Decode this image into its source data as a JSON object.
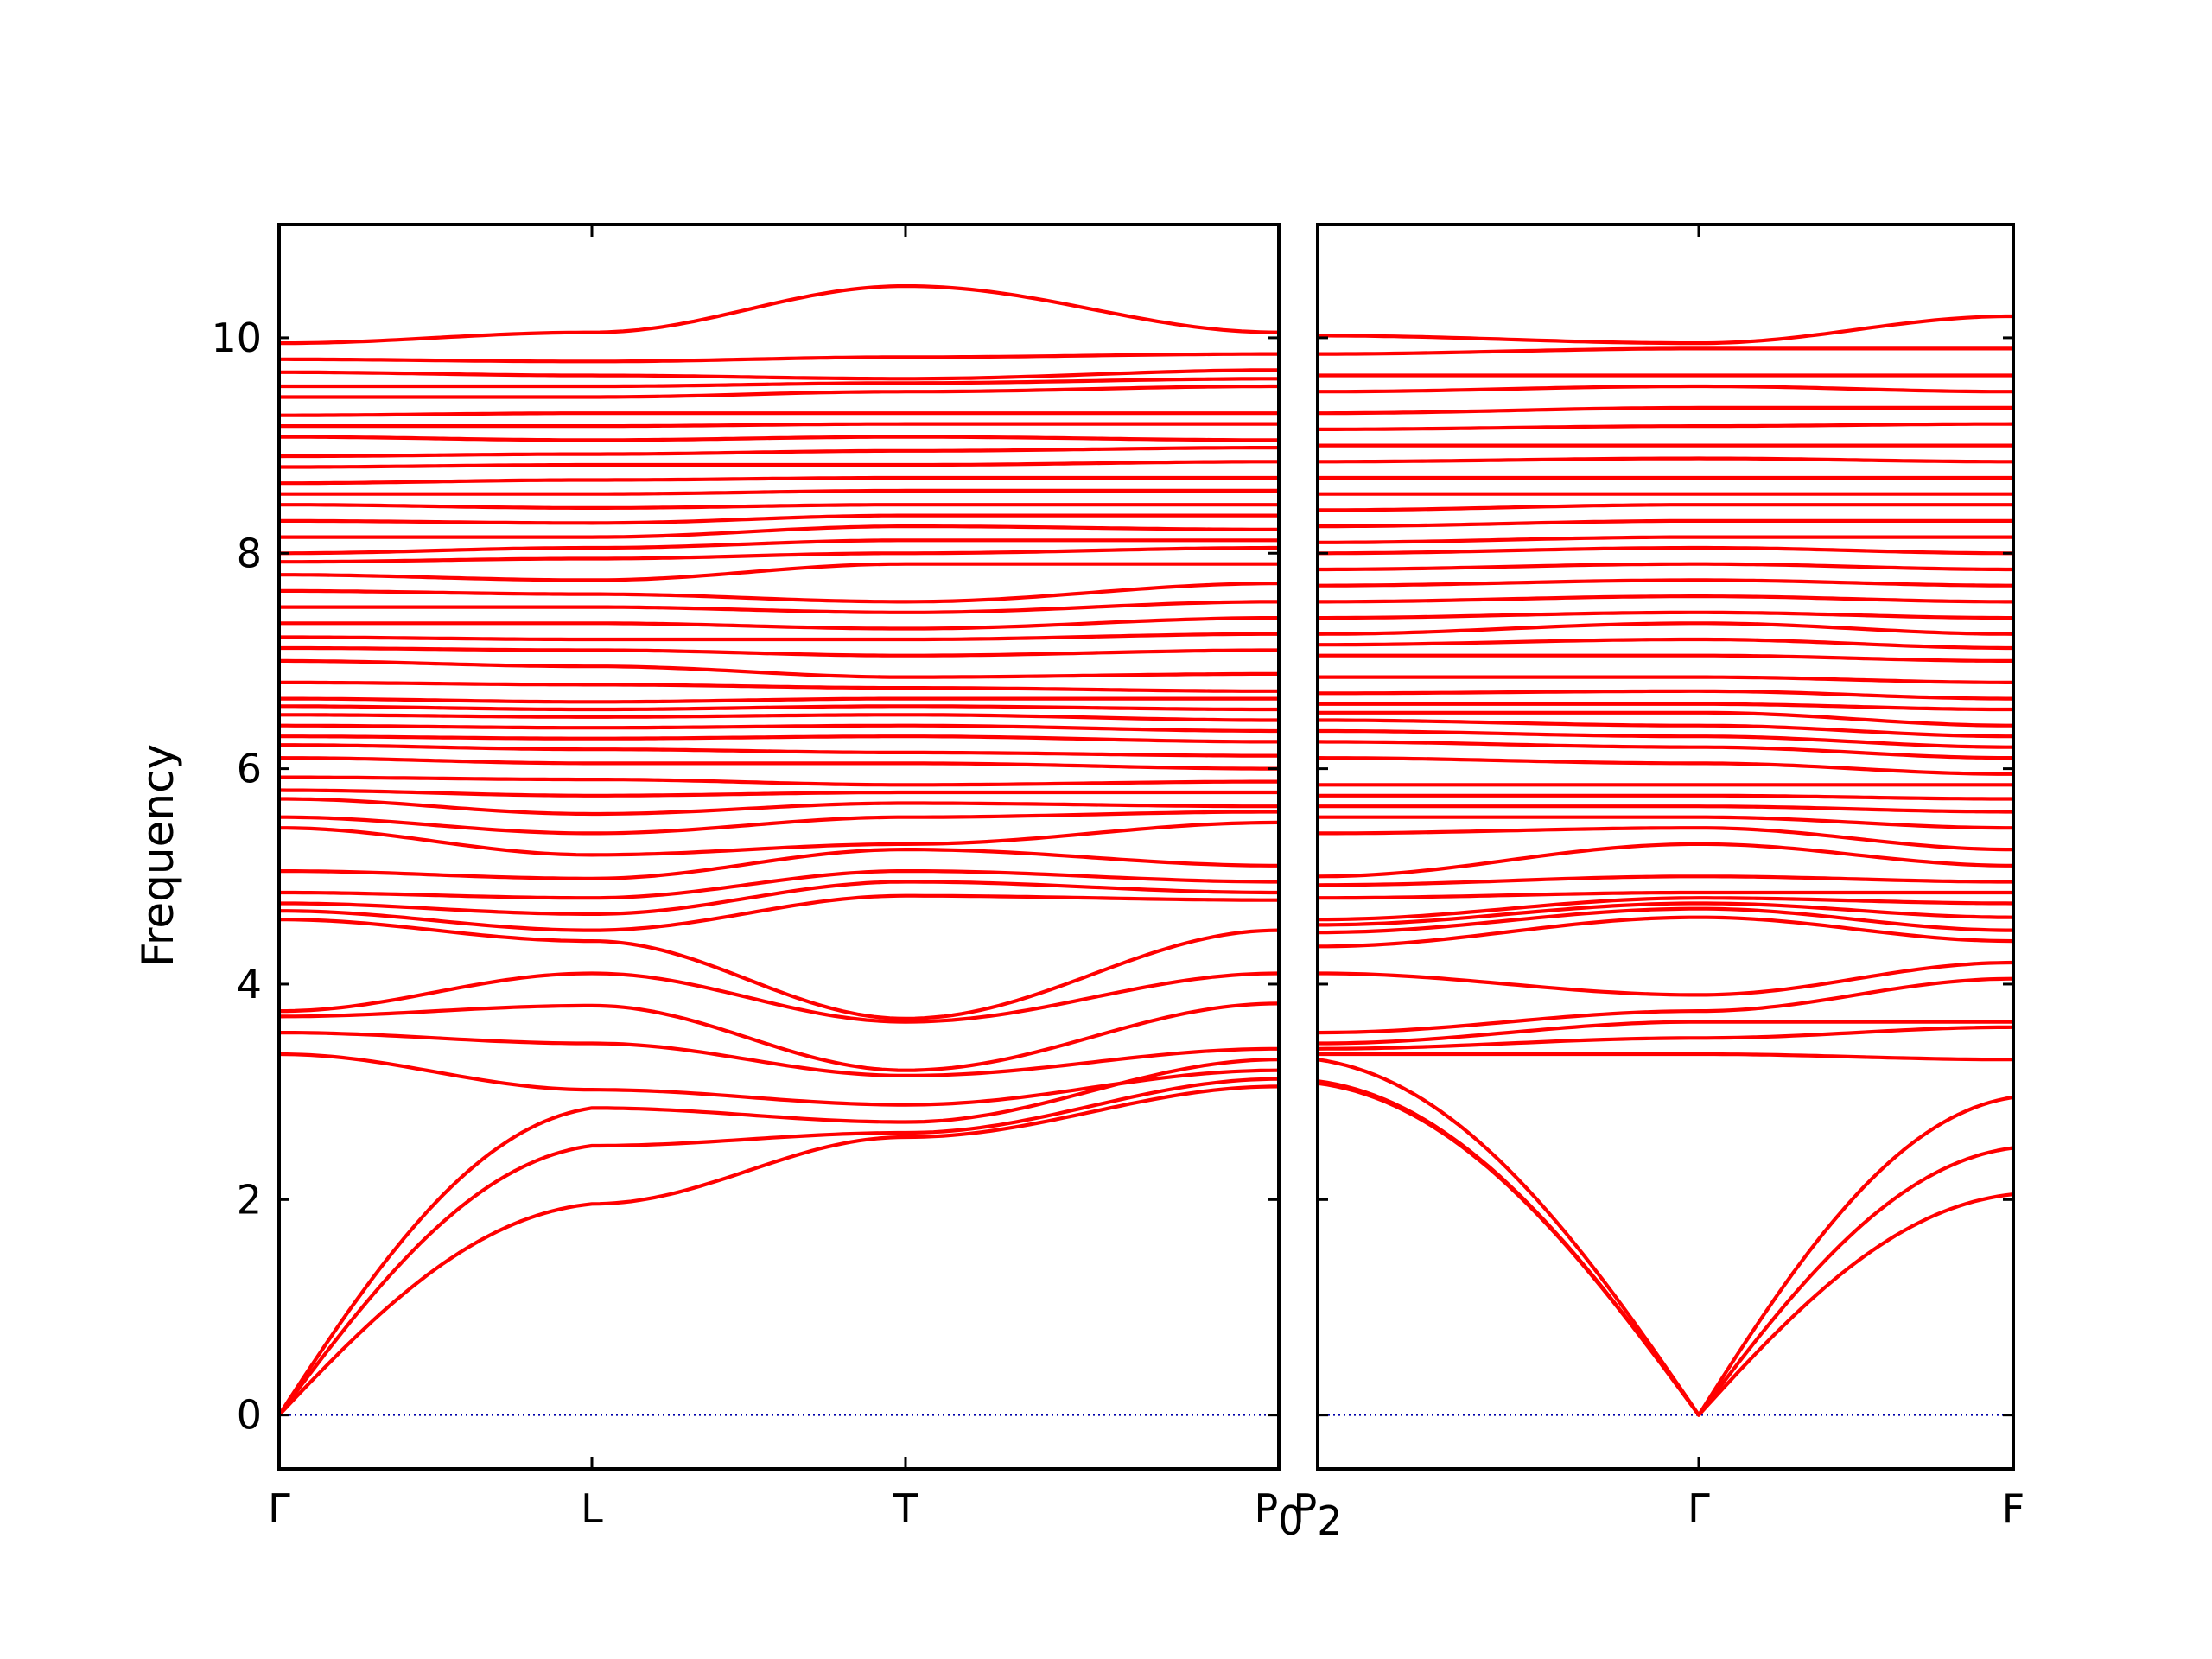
{
  "chart_data": {
    "type": "line",
    "ylabel": "Frequency",
    "ylim": [
      -0.5,
      11.05
    ],
    "yticks": [
      0,
      2,
      4,
      6,
      8,
      10
    ],
    "ytick_labels": [
      "0",
      "2",
      "4",
      "6",
      "8",
      "10"
    ],
    "line_color": "#ff0000",
    "zero_line_color": "#0000aa",
    "panels": [
      {
        "name": "left",
        "x_points": [
          "Γ",
          "L",
          "T",
          "P0"
        ],
        "xtick_labels": [
          "Γ",
          "L",
          "T",
          "P0"
        ],
        "low_branches": [
          [
            0,
            1.96,
            2.58,
            3.05
          ],
          [
            0,
            2.5,
            2.62,
            3.12
          ],
          [
            0,
            2.85,
            2.72,
            3.3
          ],
          [
            3.35,
            3.02,
            2.88,
            3.2
          ],
          [
            3.55,
            3.45,
            3.15,
            3.4
          ],
          [
            3.7,
            3.8,
            3.2,
            3.82
          ],
          [
            3.75,
            4.1,
            3.65,
            4.1
          ],
          [
            4.6,
            4.4,
            3.68,
            4.5
          ]
        ],
        "band_energies": [
          [
            4.68,
            4.5,
            4.82,
            4.78
          ],
          [
            4.75,
            4.65,
            4.95,
            4.85
          ],
          [
            4.85,
            4.8,
            5.05,
            4.95
          ],
          [
            5.05,
            4.98,
            5.25,
            5.1
          ],
          [
            5.45,
            5.2,
            5.3,
            5.5
          ],
          [
            5.55,
            5.4,
            5.55,
            5.6
          ],
          [
            5.72,
            5.58,
            5.68,
            5.65
          ],
          [
            5.8,
            5.75,
            5.78,
            5.78
          ],
          [
            5.92,
            5.9,
            5.85,
            5.88
          ],
          [
            6.1,
            6.05,
            6.05,
            6.0
          ],
          [
            6.22,
            6.18,
            6.15,
            6.12
          ],
          [
            6.3,
            6.28,
            6.3,
            6.25
          ],
          [
            6.4,
            6.38,
            6.4,
            6.35
          ],
          [
            6.5,
            6.48,
            6.5,
            6.45
          ],
          [
            6.58,
            6.55,
            6.58,
            6.55
          ],
          [
            6.65,
            6.62,
            6.65,
            6.65
          ],
          [
            6.8,
            6.78,
            6.75,
            6.72
          ],
          [
            7.0,
            6.95,
            6.85,
            6.88
          ],
          [
            7.12,
            7.1,
            7.05,
            7.1
          ],
          [
            7.22,
            7.2,
            7.2,
            7.25
          ],
          [
            7.35,
            7.35,
            7.3,
            7.4
          ],
          [
            7.5,
            7.5,
            7.45,
            7.55
          ],
          [
            7.65,
            7.62,
            7.55,
            7.72
          ],
          [
            7.8,
            7.75,
            7.9,
            7.9
          ],
          [
            7.92,
            7.95,
            8.0,
            8.05
          ],
          [
            8.0,
            8.05,
            8.12,
            8.12
          ],
          [
            8.15,
            8.15,
            8.25,
            8.22
          ],
          [
            8.3,
            8.28,
            8.35,
            8.35
          ],
          [
            8.45,
            8.42,
            8.45,
            8.45
          ],
          [
            8.55,
            8.55,
            8.58,
            8.58
          ],
          [
            8.65,
            8.68,
            8.7,
            8.7
          ],
          [
            8.8,
            8.82,
            8.82,
            8.85
          ],
          [
            8.9,
            8.92,
            8.95,
            8.98
          ],
          [
            9.08,
            9.05,
            9.08,
            9.05
          ],
          [
            9.18,
            9.18,
            9.2,
            9.2
          ],
          [
            9.28,
            9.3,
            9.3,
            9.3
          ],
          [
            9.45,
            9.45,
            9.5,
            9.55
          ],
          [
            9.55,
            9.55,
            9.58,
            9.62
          ],
          [
            9.68,
            9.65,
            9.62,
            9.7
          ],
          [
            9.8,
            9.78,
            9.82,
            9.85
          ],
          [
            9.95,
            10.05,
            10.48,
            10.05
          ]
        ]
      },
      {
        "name": "right",
        "x_points": [
          "P2",
          "Γ",
          "F"
        ],
        "xtick_labels": [
          "P2",
          "Γ",
          "F"
        ],
        "low_branches": [
          [
            3.08,
            0,
            2.05
          ],
          [
            3.1,
            0,
            2.48
          ],
          [
            3.3,
            0,
            2.95
          ],
          [
            3.35,
            3.35,
            3.3
          ],
          [
            3.4,
            3.5,
            3.6
          ],
          [
            3.45,
            3.65,
            3.65
          ],
          [
            3.55,
            3.75,
            4.05
          ],
          [
            4.1,
            3.9,
            4.2
          ]
        ],
        "band_energies": [
          [
            4.35,
            4.62,
            4.4
          ],
          [
            4.48,
            4.7,
            4.5
          ],
          [
            4.55,
            4.75,
            4.62
          ],
          [
            4.6,
            4.8,
            4.75
          ],
          [
            4.8,
            4.85,
            4.85
          ],
          [
            4.92,
            5.0,
            4.95
          ],
          [
            5.0,
            5.3,
            5.1
          ],
          [
            5.4,
            5.45,
            5.25
          ],
          [
            5.55,
            5.55,
            5.45
          ],
          [
            5.65,
            5.65,
            5.6
          ],
          [
            5.75,
            5.75,
            5.72
          ],
          [
            5.85,
            5.85,
            5.85
          ],
          [
            6.1,
            6.05,
            5.95
          ],
          [
            6.25,
            6.2,
            6.1
          ],
          [
            6.35,
            6.3,
            6.2
          ],
          [
            6.45,
            6.4,
            6.3
          ],
          [
            6.52,
            6.52,
            6.4
          ],
          [
            6.6,
            6.6,
            6.55
          ],
          [
            6.7,
            6.72,
            6.65
          ],
          [
            6.85,
            6.85,
            6.8
          ],
          [
            7.05,
            7.05,
            7.0
          ],
          [
            7.15,
            7.2,
            7.12
          ],
          [
            7.25,
            7.35,
            7.25
          ],
          [
            7.4,
            7.45,
            7.4
          ],
          [
            7.55,
            7.6,
            7.55
          ],
          [
            7.7,
            7.75,
            7.7
          ],
          [
            7.85,
            7.9,
            7.85
          ],
          [
            8.0,
            8.05,
            8.0
          ],
          [
            8.1,
            8.15,
            8.15
          ],
          [
            8.25,
            8.3,
            8.3
          ],
          [
            8.4,
            8.45,
            8.45
          ],
          [
            8.55,
            8.55,
            8.55
          ],
          [
            8.7,
            8.7,
            8.7
          ],
          [
            8.85,
            8.88,
            8.85
          ],
          [
            9.0,
            9.0,
            9.0
          ],
          [
            9.15,
            9.18,
            9.2
          ],
          [
            9.3,
            9.35,
            9.35
          ],
          [
            9.5,
            9.55,
            9.5
          ],
          [
            9.65,
            9.65,
            9.65
          ],
          [
            9.85,
            9.9,
            9.9
          ],
          [
            10.02,
            9.95,
            10.2
          ]
        ]
      }
    ]
  }
}
